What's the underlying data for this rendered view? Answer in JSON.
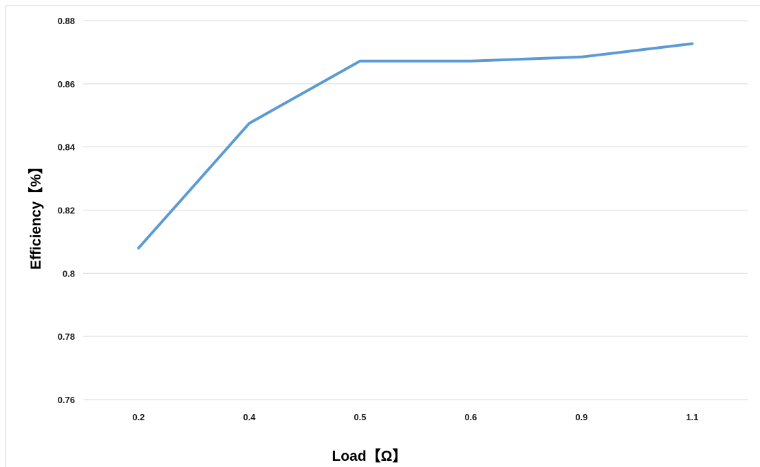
{
  "chart_data": {
    "type": "line",
    "title": "",
    "xlabel": "Load【Ω】",
    "ylabel": "Efficiency【%】",
    "categories": [
      "0.2",
      "0.4",
      "0.5",
      "0.6",
      "0.9",
      "1.1"
    ],
    "series": [
      {
        "values": [
          0.808,
          0.8475,
          0.8672,
          0.8672,
          0.8685,
          0.8727
        ]
      }
    ],
    "ylim": [
      0.76,
      0.88
    ],
    "yticks": [
      "0.76",
      "0.78",
      "0.8",
      "0.82",
      "0.84",
      "0.86",
      "0.88"
    ],
    "grid": true,
    "legend": "none",
    "colors": {
      "line": "#5b9bd5",
      "grid": "#d9d9d9"
    }
  }
}
